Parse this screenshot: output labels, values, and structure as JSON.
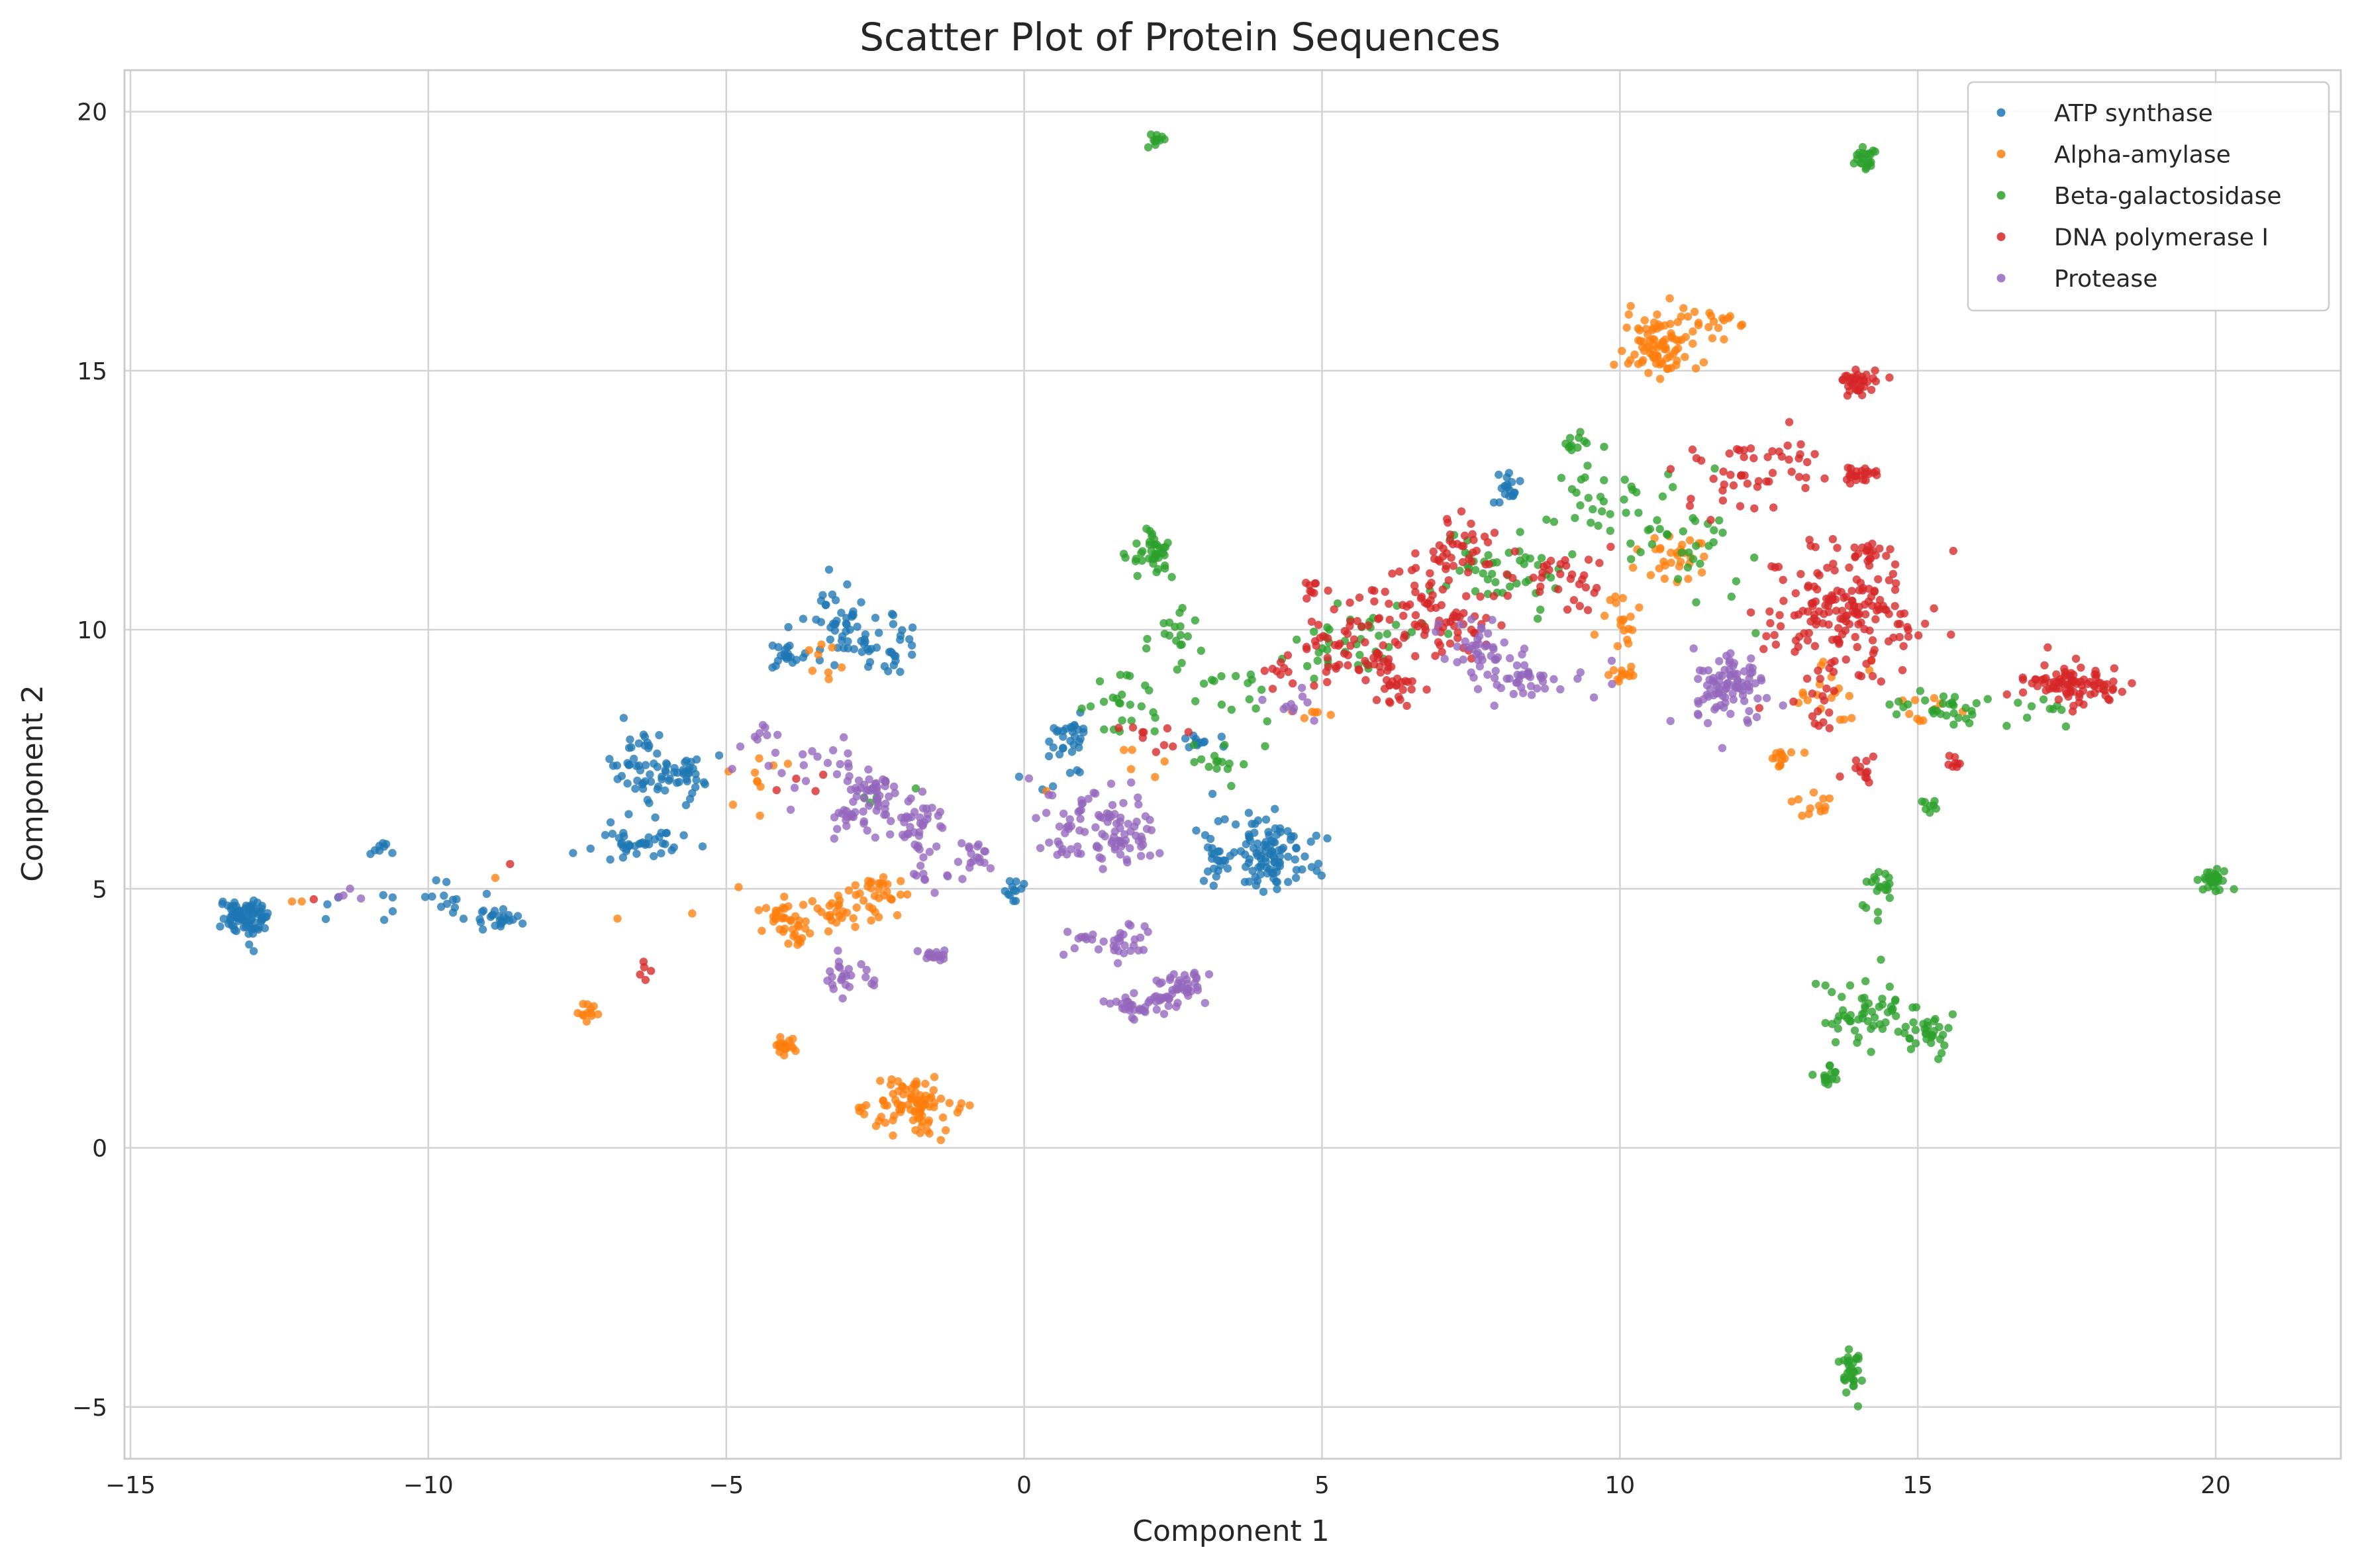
{
  "chart_data": {
    "type": "scatter",
    "title": "Scatter Plot of Protein Sequences",
    "xlabel": "Component 1",
    "ylabel": "Component 2",
    "xlim": [
      -15.1,
      22.1
    ],
    "ylim": [
      -6.0,
      20.8
    ],
    "xticks": [
      -15,
      -10,
      -5,
      0,
      5,
      10,
      15,
      20
    ],
    "yticks": [
      -5,
      0,
      5,
      10,
      15,
      20
    ],
    "xtick_labels": [
      "−15",
      "−10",
      "−5",
      "0",
      "5",
      "10",
      "15",
      "20"
    ],
    "ytick_labels": [
      "−5",
      "0",
      "5",
      "10",
      "15",
      "20"
    ],
    "grid": true,
    "legend_position": "top-right",
    "series": [
      {
        "name": "ATP synthase",
        "color": "#1f77b4",
        "clusters": [
          {
            "x": -13.1,
            "y": 4.45,
            "sx": 0.18,
            "sy": 0.18,
            "n": 90
          },
          {
            "x": -10.8,
            "y": 5.8,
            "sx": 0.12,
            "sy": 0.1,
            "n": 8
          },
          {
            "x": -11.3,
            "y": 4.6,
            "sx": 0.5,
            "sy": 0.15,
            "n": 6
          },
          {
            "x": -9.8,
            "y": 4.7,
            "sx": 0.3,
            "sy": 0.15,
            "n": 16
          },
          {
            "x": -8.8,
            "y": 4.4,
            "sx": 0.2,
            "sy": 0.1,
            "n": 22
          },
          {
            "x": -6.4,
            "y": 7.4,
            "sx": 0.3,
            "sy": 0.35,
            "n": 45
          },
          {
            "x": -5.7,
            "y": 7.2,
            "sx": 0.3,
            "sy": 0.2,
            "n": 35
          },
          {
            "x": -6.4,
            "y": 5.9,
            "sx": 0.4,
            "sy": 0.15,
            "n": 40
          },
          {
            "x": -3.2,
            "y": 10.2,
            "sx": 0.25,
            "sy": 0.35,
            "n": 40
          },
          {
            "x": -2.3,
            "y": 9.6,
            "sx": 0.25,
            "sy": 0.3,
            "n": 35
          },
          {
            "x": -4.0,
            "y": 9.5,
            "sx": 0.15,
            "sy": 0.12,
            "n": 20
          },
          {
            "x": -0.15,
            "y": 4.95,
            "sx": 0.08,
            "sy": 0.1,
            "n": 12
          },
          {
            "x": 0.8,
            "y": 7.9,
            "sx": 0.2,
            "sy": 0.2,
            "n": 28
          },
          {
            "x": 2.9,
            "y": 7.8,
            "sx": 0.15,
            "sy": 0.1,
            "n": 12
          },
          {
            "x": 3.2,
            "y": 5.4,
            "sx": 0.1,
            "sy": 0.2,
            "n": 14
          },
          {
            "x": 4.1,
            "y": 5.7,
            "sx": 0.4,
            "sy": 0.35,
            "n": 110
          },
          {
            "x": 8.1,
            "y": 12.7,
            "sx": 0.12,
            "sy": 0.12,
            "n": 18
          },
          {
            "x": 0.5,
            "y": 7.0,
            "sx": 0.3,
            "sy": 0.2,
            "n": 6
          }
        ]
      },
      {
        "name": "Alpha-amylase",
        "color": "#ff7f0e",
        "clusters": [
          {
            "x": -12.1,
            "y": 4.7,
            "sx": 0.1,
            "sy": 0.05,
            "n": 2
          },
          {
            "x": -8.9,
            "y": 5.2,
            "sx": 0.05,
            "sy": 0.05,
            "n": 1
          },
          {
            "x": -7.3,
            "y": 2.6,
            "sx": 0.1,
            "sy": 0.1,
            "n": 12
          },
          {
            "x": -6.8,
            "y": 4.5,
            "sx": 0.05,
            "sy": 0.05,
            "n": 1
          },
          {
            "x": -5.5,
            "y": 4.5,
            "sx": 0.05,
            "sy": 0.05,
            "n": 1
          },
          {
            "x": -4.0,
            "y": 4.4,
            "sx": 0.3,
            "sy": 0.3,
            "n": 40
          },
          {
            "x": -3.1,
            "y": 4.6,
            "sx": 0.4,
            "sy": 0.2,
            "n": 30
          },
          {
            "x": -2.3,
            "y": 5.0,
            "sx": 0.3,
            "sy": 0.25,
            "n": 25
          },
          {
            "x": -4.0,
            "y": 1.95,
            "sx": 0.1,
            "sy": 0.08,
            "n": 20
          },
          {
            "x": -1.8,
            "y": 0.9,
            "sx": 0.35,
            "sy": 0.3,
            "n": 90
          },
          {
            "x": -2.7,
            "y": 0.7,
            "sx": 0.05,
            "sy": 0.1,
            "n": 5
          },
          {
            "x": -3.3,
            "y": 9.4,
            "sx": 0.3,
            "sy": 0.2,
            "n": 8
          },
          {
            "x": -4.5,
            "y": 7.0,
            "sx": 0.3,
            "sy": 0.4,
            "n": 10
          },
          {
            "x": 10.7,
            "y": 15.5,
            "sx": 0.35,
            "sy": 0.35,
            "n": 90
          },
          {
            "x": 11.7,
            "y": 16.0,
            "sx": 0.2,
            "sy": 0.1,
            "n": 12
          },
          {
            "x": 10.9,
            "y": 11.4,
            "sx": 0.3,
            "sy": 0.25,
            "n": 30
          },
          {
            "x": 10.0,
            "y": 10.2,
            "sx": 0.2,
            "sy": 0.3,
            "n": 18
          },
          {
            "x": 10.0,
            "y": 9.1,
            "sx": 0.1,
            "sy": 0.1,
            "n": 12
          },
          {
            "x": 12.7,
            "y": 7.5,
            "sx": 0.1,
            "sy": 0.08,
            "n": 12
          },
          {
            "x": 13.3,
            "y": 6.6,
            "sx": 0.12,
            "sy": 0.1,
            "n": 12
          },
          {
            "x": 13.5,
            "y": 8.7,
            "sx": 0.4,
            "sy": 0.4,
            "n": 20
          },
          {
            "x": 15.3,
            "y": 8.5,
            "sx": 0.3,
            "sy": 0.2,
            "n": 10
          },
          {
            "x": 4.8,
            "y": 8.4,
            "sx": 0.2,
            "sy": 0.1,
            "n": 6
          },
          {
            "x": 1.7,
            "y": 7.2,
            "sx": 0.4,
            "sy": 0.2,
            "n": 6
          }
        ]
      },
      {
        "name": "Beta-galactosidase",
        "color": "#2ca02c",
        "clusters": [
          {
            "x": 2.2,
            "y": 19.45,
            "sx": 0.06,
            "sy": 0.06,
            "n": 12
          },
          {
            "x": 2.1,
            "y": 11.5,
            "sx": 0.2,
            "sy": 0.2,
            "n": 40
          },
          {
            "x": 2.6,
            "y": 9.9,
            "sx": 0.2,
            "sy": 0.2,
            "n": 18
          },
          {
            "x": 1.8,
            "y": 8.7,
            "sx": 0.3,
            "sy": 0.4,
            "n": 25
          },
          {
            "x": 3.5,
            "y": 8.7,
            "sx": 0.3,
            "sy": 0.3,
            "n": 15
          },
          {
            "x": 3.5,
            "y": 7.4,
            "sx": 0.5,
            "sy": 0.2,
            "n": 15
          },
          {
            "x": 5.5,
            "y": 9.8,
            "sx": 0.6,
            "sy": 0.4,
            "n": 40
          },
          {
            "x": 8.0,
            "y": 11.2,
            "sx": 0.5,
            "sy": 0.4,
            "n": 45
          },
          {
            "x": 9.8,
            "y": 12.5,
            "sx": 0.6,
            "sy": 0.5,
            "n": 40
          },
          {
            "x": 9.2,
            "y": 13.6,
            "sx": 0.08,
            "sy": 0.08,
            "n": 10
          },
          {
            "x": 11.3,
            "y": 11.6,
            "sx": 0.5,
            "sy": 0.5,
            "n": 25
          },
          {
            "x": 14.1,
            "y": 19.1,
            "sx": 0.1,
            "sy": 0.1,
            "n": 22
          },
          {
            "x": 15.3,
            "y": 8.5,
            "sx": 0.4,
            "sy": 0.2,
            "n": 30
          },
          {
            "x": 17.2,
            "y": 8.5,
            "sx": 0.4,
            "sy": 0.3,
            "n": 10
          },
          {
            "x": 15.2,
            "y": 6.6,
            "sx": 0.1,
            "sy": 0.1,
            "n": 8
          },
          {
            "x": 14.4,
            "y": 5.1,
            "sx": 0.12,
            "sy": 0.15,
            "n": 16
          },
          {
            "x": 14.1,
            "y": 2.6,
            "sx": 0.4,
            "sy": 0.3,
            "n": 55
          },
          {
            "x": 15.2,
            "y": 2.2,
            "sx": 0.2,
            "sy": 0.2,
            "n": 30
          },
          {
            "x": 13.5,
            "y": 1.4,
            "sx": 0.1,
            "sy": 0.12,
            "n": 15
          },
          {
            "x": 13.9,
            "y": -4.3,
            "sx": 0.1,
            "sy": 0.2,
            "n": 30
          },
          {
            "x": 20.0,
            "y": 5.2,
            "sx": 0.15,
            "sy": 0.12,
            "n": 28
          },
          {
            "x": 14.2,
            "y": 4.5,
            "sx": 0.1,
            "sy": 0.1,
            "n": 4
          },
          {
            "x": -2.5,
            "y": 6.8,
            "sx": 0.2,
            "sy": 0.2,
            "n": 4
          }
        ]
      },
      {
        "name": "DNA polymerase I",
        "color": "#d62728",
        "clusters": [
          {
            "x": -11.8,
            "y": 4.9,
            "sx": 0.1,
            "sy": 0.05,
            "n": 1
          },
          {
            "x": -8.7,
            "y": 5.5,
            "sx": 0.05,
            "sy": 0.05,
            "n": 1
          },
          {
            "x": -6.4,
            "y": 3.45,
            "sx": 0.1,
            "sy": 0.08,
            "n": 5
          },
          {
            "x": -3.8,
            "y": 7.0,
            "sx": 0.2,
            "sy": 0.2,
            "n": 4
          },
          {
            "x": 2.0,
            "y": 8.0,
            "sx": 0.3,
            "sy": 0.2,
            "n": 10
          },
          {
            "x": 4.2,
            "y": 9.2,
            "sx": 0.15,
            "sy": 0.15,
            "n": 8
          },
          {
            "x": 4.8,
            "y": 10.8,
            "sx": 0.1,
            "sy": 0.1,
            "n": 8
          },
          {
            "x": 5.5,
            "y": 9.6,
            "sx": 0.5,
            "sy": 0.4,
            "n": 60
          },
          {
            "x": 6.5,
            "y": 10.5,
            "sx": 0.5,
            "sy": 0.5,
            "n": 55
          },
          {
            "x": 6.3,
            "y": 8.9,
            "sx": 0.2,
            "sy": 0.15,
            "n": 20
          },
          {
            "x": 7.3,
            "y": 11.5,
            "sx": 0.4,
            "sy": 0.4,
            "n": 40
          },
          {
            "x": 7.4,
            "y": 10.0,
            "sx": 0.3,
            "sy": 0.3,
            "n": 25
          },
          {
            "x": 9.2,
            "y": 11.0,
            "sx": 0.5,
            "sy": 0.3,
            "n": 30
          },
          {
            "x": 12.0,
            "y": 13.0,
            "sx": 0.5,
            "sy": 0.4,
            "n": 35
          },
          {
            "x": 13.0,
            "y": 13.4,
            "sx": 0.3,
            "sy": 0.3,
            "n": 15
          },
          {
            "x": 13.7,
            "y": 10.3,
            "sx": 0.6,
            "sy": 0.6,
            "n": 170
          },
          {
            "x": 14.0,
            "y": 14.8,
            "sx": 0.15,
            "sy": 0.15,
            "n": 35
          },
          {
            "x": 14.0,
            "y": 13.0,
            "sx": 0.15,
            "sy": 0.1,
            "n": 22
          },
          {
            "x": 14.2,
            "y": 11.5,
            "sx": 0.15,
            "sy": 0.1,
            "n": 18
          },
          {
            "x": 14.0,
            "y": 7.3,
            "sx": 0.15,
            "sy": 0.15,
            "n": 12
          },
          {
            "x": 15.7,
            "y": 7.5,
            "sx": 0.1,
            "sy": 0.1,
            "n": 8
          },
          {
            "x": 17.6,
            "y": 9.0,
            "sx": 0.4,
            "sy": 0.2,
            "n": 90
          },
          {
            "x": 13.4,
            "y": 8.5,
            "sx": 0.2,
            "sy": 0.2,
            "n": 12
          }
        ]
      },
      {
        "name": "Protease",
        "color": "#9467bd",
        "clusters": [
          {
            "x": -11.5,
            "y": 4.9,
            "sx": 0.3,
            "sy": 0.05,
            "n": 4
          },
          {
            "x": -4.4,
            "y": 7.8,
            "sx": 0.3,
            "sy": 0.3,
            "n": 12
          },
          {
            "x": -3.5,
            "y": 7.2,
            "sx": 0.4,
            "sy": 0.4,
            "n": 15
          },
          {
            "x": -3.0,
            "y": 6.3,
            "sx": 0.15,
            "sy": 0.15,
            "n": 12
          },
          {
            "x": -2.6,
            "y": 6.8,
            "sx": 0.25,
            "sy": 0.3,
            "n": 45
          },
          {
            "x": -1.8,
            "y": 6.2,
            "sx": 0.35,
            "sy": 0.3,
            "n": 50
          },
          {
            "x": -0.8,
            "y": 5.7,
            "sx": 0.15,
            "sy": 0.15,
            "n": 15
          },
          {
            "x": -1.5,
            "y": 5.3,
            "sx": 0.3,
            "sy": 0.2,
            "n": 10
          },
          {
            "x": -3.0,
            "y": 3.3,
            "sx": 0.2,
            "sy": 0.15,
            "n": 25
          },
          {
            "x": -1.5,
            "y": 3.7,
            "sx": 0.12,
            "sy": 0.1,
            "n": 15
          },
          {
            "x": 1.3,
            "y": 6.2,
            "sx": 0.5,
            "sy": 0.35,
            "n": 100
          },
          {
            "x": 1.5,
            "y": 4.0,
            "sx": 0.35,
            "sy": 0.15,
            "n": 35
          },
          {
            "x": 2.6,
            "y": 3.1,
            "sx": 0.25,
            "sy": 0.2,
            "n": 45
          },
          {
            "x": 1.9,
            "y": 2.7,
            "sx": 0.25,
            "sy": 0.15,
            "n": 30
          },
          {
            "x": 4.4,
            "y": 8.5,
            "sx": 0.2,
            "sy": 0.2,
            "n": 10
          },
          {
            "x": 7.7,
            "y": 9.6,
            "sx": 0.4,
            "sy": 0.3,
            "n": 40
          },
          {
            "x": 8.4,
            "y": 9.0,
            "sx": 0.3,
            "sy": 0.2,
            "n": 35
          },
          {
            "x": 11.8,
            "y": 8.9,
            "sx": 0.3,
            "sy": 0.35,
            "n": 90
          },
          {
            "x": 9.5,
            "y": 9.0,
            "sx": 0.3,
            "sy": 0.3,
            "n": 6
          }
        ]
      }
    ]
  }
}
